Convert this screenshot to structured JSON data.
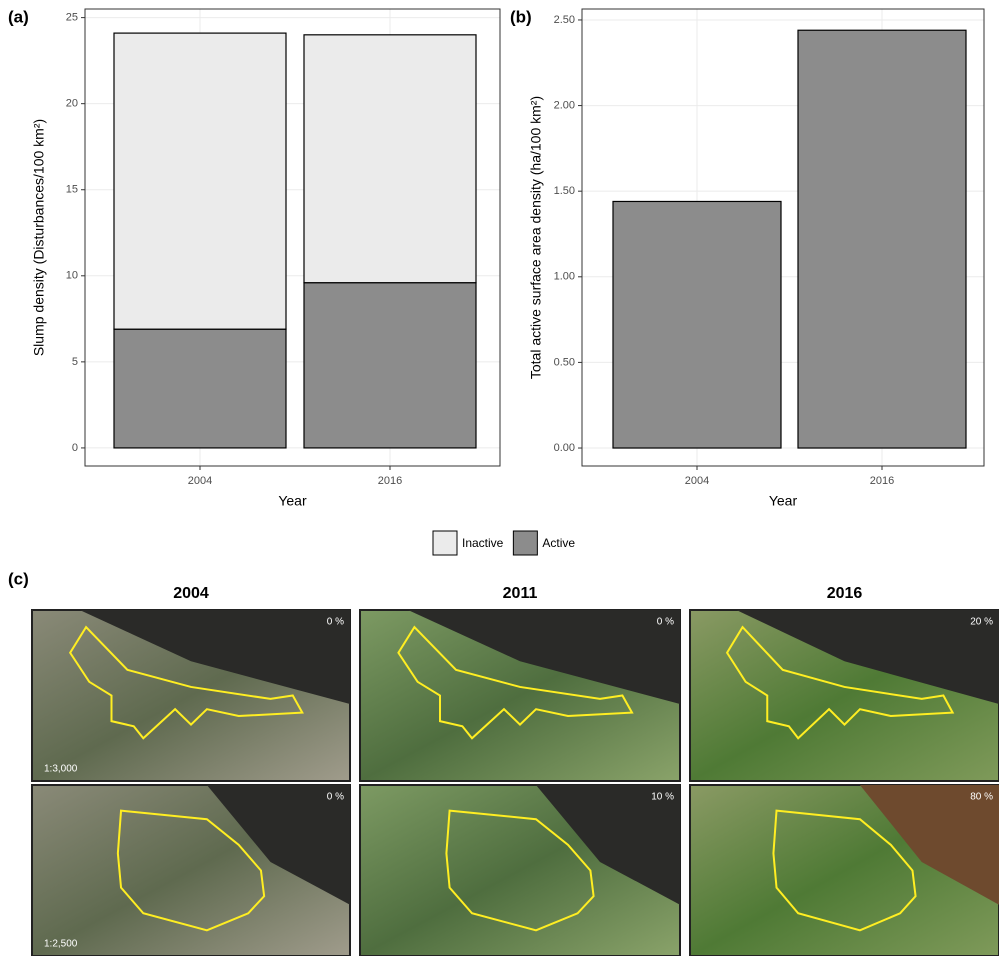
{
  "chart_data": [
    {
      "type": "stacked_bar",
      "panel_label": "(a)",
      "x_label": "Year",
      "y_label": "Slump density (Disturbances/100 km²)",
      "categories": [
        "2004",
        "2016"
      ],
      "series": [
        {
          "name": "Inactive",
          "color": "#ebebeb",
          "values": [
            17.2,
            14.4
          ]
        },
        {
          "name": "Active",
          "color": "#8c8c8c",
          "values": [
            6.9,
            9.6
          ]
        }
      ],
      "ylim": [
        -1.05,
        25.5
      ],
      "yticks": [
        0,
        5,
        10,
        15,
        20,
        25
      ],
      "grid": true,
      "legend": "bottom"
    },
    {
      "type": "bar",
      "panel_label": "(b)",
      "x_label": "Year",
      "y_label": "Total active surface area density (ha/100 km²)",
      "categories": [
        "2004",
        "2016"
      ],
      "values": [
        1.44,
        2.44
      ],
      "color": "#8c8c8c",
      "ylim": [
        -0.105,
        2.564
      ],
      "yticks": [
        {
          "value": 0,
          "label": "0.00"
        },
        {
          "value": 0.5,
          "label": "0.50"
        },
        {
          "value": 1,
          "label": "1.00"
        },
        {
          "value": 1.5,
          "label": "1.50"
        },
        {
          "value": 2,
          "label": "2.00"
        },
        {
          "value": 2.5,
          "label": "2.50"
        }
      ],
      "grid": true
    }
  ],
  "imagery": {
    "panel_label": "(c)",
    "years": [
      "2004",
      "2011",
      "2016"
    ],
    "rows": [
      {
        "scale": "1:3,000",
        "cover": [
          "0 %",
          "0 %",
          "20 %"
        ]
      },
      {
        "scale": "1:2,500",
        "cover": [
          "0 %",
          "10 %",
          "80 %"
        ]
      }
    ]
  }
}
